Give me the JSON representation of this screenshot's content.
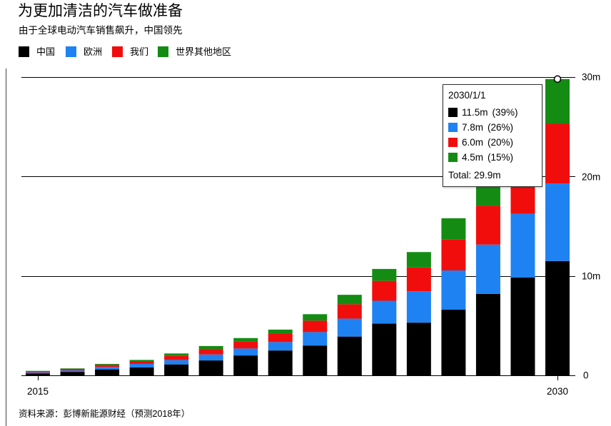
{
  "chart_data": {
    "type": "bar",
    "stacked": true,
    "title": "为更加清洁的汽车做准备",
    "subtitle": "由于全球电动汽车销售飙升，中国领先",
    "x": [
      2015,
      2016,
      2017,
      2018,
      2019,
      2020,
      2021,
      2022,
      2023,
      2024,
      2025,
      2026,
      2027,
      2028,
      2029,
      2030
    ],
    "xtick_labels": [
      "2015",
      "2030"
    ],
    "ylim": [
      0,
      30
    ],
    "ytick_values": [
      0,
      10,
      20,
      30
    ],
    "ytick_labels": [
      "0",
      "10m",
      "20m",
      "30m"
    ],
    "yaxis_position": "right",
    "grid": true,
    "legend_position": "top-left",
    "series": [
      {
        "name": "中国",
        "color": "#000000",
        "values": [
          0.2,
          0.35,
          0.6,
          0.8,
          1.1,
          1.5,
          2.0,
          2.5,
          3.0,
          3.9,
          5.2,
          5.3,
          6.6,
          8.2,
          9.85,
          11.5
        ]
      },
      {
        "name": "欧洲",
        "color": "#1f82f2",
        "values": [
          0.1,
          0.15,
          0.25,
          0.35,
          0.45,
          0.6,
          0.7,
          0.85,
          1.35,
          1.8,
          2.3,
          3.15,
          3.95,
          4.95,
          6.4,
          7.8
        ]
      },
      {
        "name": "我们",
        "color": "#f20d0d",
        "values": [
          0.1,
          0.15,
          0.2,
          0.25,
          0.4,
          0.55,
          0.7,
          0.85,
          1.15,
          1.45,
          2.0,
          2.4,
          3.1,
          3.9,
          5.0,
          6.0
        ]
      },
      {
        "name": "世界其他地区",
        "color": "#148c14",
        "values": [
          0.05,
          0.05,
          0.1,
          0.15,
          0.25,
          0.3,
          0.35,
          0.4,
          0.65,
          0.95,
          1.2,
          1.55,
          2.15,
          2.6,
          3.5,
          4.5
        ]
      }
    ]
  },
  "tooltip": {
    "date": "2030/1/1",
    "rows": [
      {
        "value": "11.5m",
        "pct": "(39%)"
      },
      {
        "value": "7.8m",
        "pct": "(26%)"
      },
      {
        "value": "6.0m",
        "pct": "(20%)"
      },
      {
        "value": "4.5m",
        "pct": "(15%)"
      }
    ],
    "total": "Total: 29.9m"
  },
  "source": "资料来源：彭博新能源财经（预测2018年）"
}
